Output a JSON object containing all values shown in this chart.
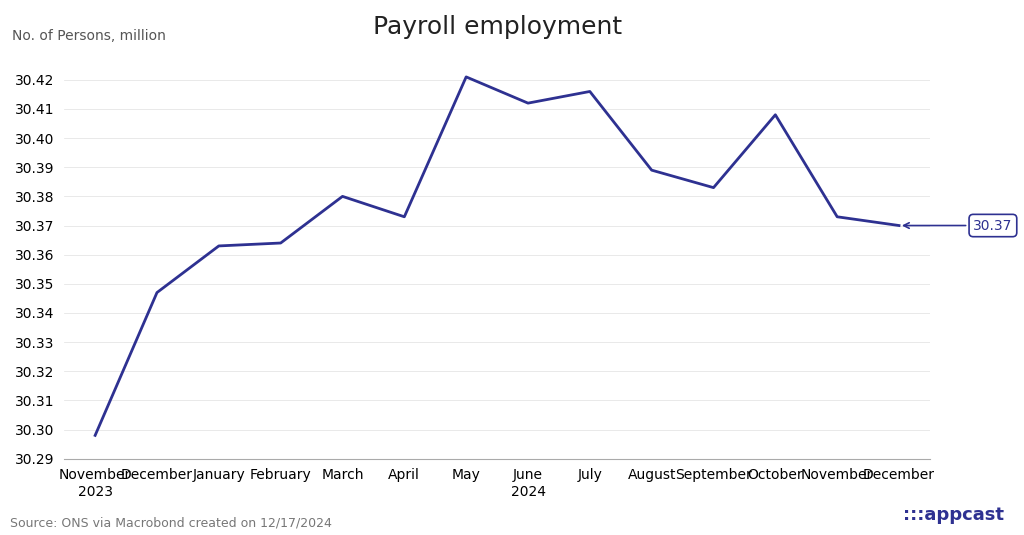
{
  "title": "Payroll employment",
  "ylabel": "No. of Persons, million",
  "source_text": "Source: ONS via Macrobond created on 12/17/2024",
  "line_color": "#2E3191",
  "background_color": "#FFFFFF",
  "ylim": [
    30.29,
    30.43
  ],
  "yticks": [
    30.29,
    30.3,
    30.31,
    30.32,
    30.33,
    30.34,
    30.35,
    30.36,
    30.37,
    30.38,
    30.39,
    30.4,
    30.41,
    30.42
  ],
  "labels": [
    "November\n2023",
    "December",
    "January",
    "February",
    "March",
    "April",
    "May",
    "June\n2024",
    "July",
    "August",
    "September",
    "October",
    "November",
    "December"
  ],
  "values": [
    30.298,
    30.347,
    30.363,
    30.364,
    30.38,
    30.373,
    30.421,
    30.412,
    30.416,
    30.389,
    30.383,
    30.408,
    30.373,
    30.37
  ],
  "last_label": "30.37",
  "title_fontsize": 18,
  "axis_fontsize": 10,
  "tick_fontsize": 10,
  "source_fontsize": 9
}
